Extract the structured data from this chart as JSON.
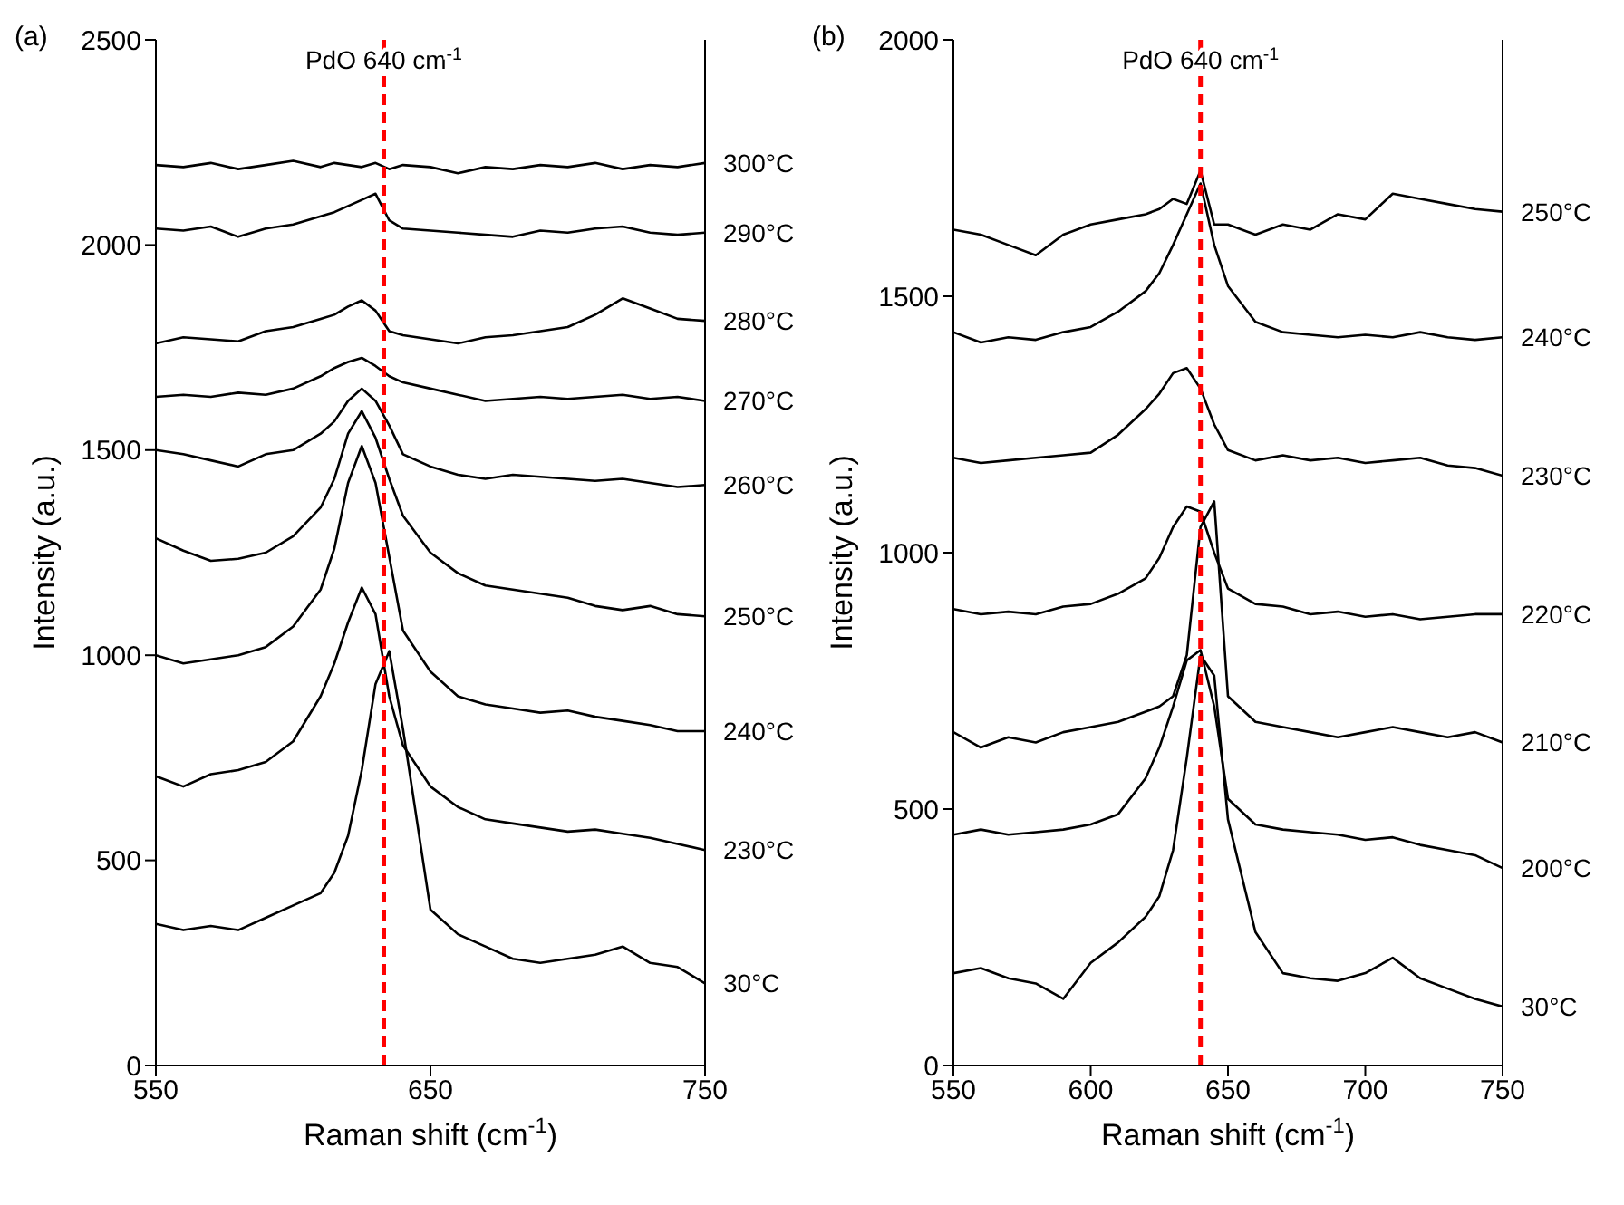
{
  "chart_data": [
    {
      "type": "line",
      "title": "(a)",
      "xlabel": "Raman shift (cm$^{-1}$)",
      "ylabel": "Intensity (a.u.)",
      "xlim": [
        550,
        750
      ],
      "xticks": [
        550,
        650,
        750
      ],
      "ylim": [
        0,
        2500
      ],
      "yticks": [
        0,
        500,
        1000,
        1500,
        2000,
        2500
      ],
      "grid": false,
      "legend": false,
      "marker": "none",
      "line_style": "solid",
      "x": [
        550,
        560,
        570,
        580,
        590,
        600,
        610,
        615,
        620,
        625,
        630,
        635,
        640,
        650,
        660,
        670,
        680,
        690,
        700,
        710,
        720,
        730,
        740,
        750
      ],
      "ref_lines": [
        {
          "axis": "x",
          "value": 633,
          "label": "PdO 640 cm$^{-1}$",
          "color": "#ff0000",
          "line_style": "dashed"
        }
      ],
      "series": [
        {
          "name": "300°C",
          "color": "#000000",
          "values": [
            2195,
            2190,
            2200,
            2185,
            2195,
            2205,
            2190,
            2200,
            2195,
            2190,
            2200,
            2185,
            2195,
            2190,
            2175,
            2190,
            2185,
            2195,
            2190,
            2200,
            2185,
            2195,
            2190,
            2200
          ]
        },
        {
          "name": "290°C",
          "color": "#000000",
          "values": [
            2040,
            2035,
            2045,
            2020,
            2040,
            2050,
            2070,
            2080,
            2095,
            2110,
            2125,
            2060,
            2040,
            2035,
            2030,
            2025,
            2020,
            2035,
            2030,
            2040,
            2045,
            2030,
            2025,
            2030
          ]
        },
        {
          "name": "280°C",
          "color": "#000000",
          "values": [
            1760,
            1775,
            1770,
            1765,
            1790,
            1800,
            1820,
            1830,
            1850,
            1865,
            1840,
            1790,
            1780,
            1770,
            1760,
            1775,
            1780,
            1790,
            1800,
            1830,
            1870,
            1845,
            1820,
            1815
          ]
        },
        {
          "name": "270°C",
          "color": "#000000",
          "values": [
            1630,
            1635,
            1630,
            1640,
            1635,
            1650,
            1680,
            1700,
            1715,
            1725,
            1705,
            1680,
            1665,
            1650,
            1635,
            1620,
            1625,
            1630,
            1625,
            1630,
            1635,
            1625,
            1630,
            1620
          ]
        },
        {
          "name": "260°C",
          "color": "#000000",
          "values": [
            1500,
            1490,
            1475,
            1460,
            1490,
            1500,
            1540,
            1570,
            1620,
            1650,
            1620,
            1560,
            1490,
            1460,
            1440,
            1430,
            1440,
            1435,
            1430,
            1425,
            1430,
            1420,
            1410,
            1415
          ]
        },
        {
          "name": "250°C",
          "color": "#000000",
          "values": [
            1285,
            1255,
            1230,
            1235,
            1250,
            1290,
            1360,
            1430,
            1540,
            1595,
            1530,
            1430,
            1340,
            1250,
            1200,
            1170,
            1160,
            1150,
            1140,
            1120,
            1110,
            1120,
            1100,
            1095
          ]
        },
        {
          "name": "240°C",
          "color": "#000000",
          "values": [
            1000,
            980,
            990,
            1000,
            1020,
            1070,
            1160,
            1260,
            1420,
            1510,
            1420,
            1240,
            1060,
            960,
            900,
            880,
            870,
            860,
            865,
            850,
            840,
            830,
            815,
            815
          ]
        },
        {
          "name": "230°C",
          "color": "#000000",
          "values": [
            705,
            680,
            710,
            720,
            740,
            790,
            900,
            980,
            1080,
            1165,
            1100,
            900,
            780,
            680,
            630,
            600,
            590,
            580,
            570,
            575,
            565,
            555,
            540,
            525
          ]
        },
        {
          "name": "30°C",
          "color": "#000000",
          "values": [
            345,
            330,
            340,
            330,
            360,
            390,
            420,
            470,
            560,
            720,
            930,
            1010,
            820,
            380,
            320,
            290,
            260,
            250,
            260,
            270,
            290,
            250,
            240,
            200
          ]
        }
      ]
    },
    {
      "type": "line",
      "title": "(b)",
      "xlabel": "Raman shift (cm$^{-1}$)",
      "ylabel": "Intensity (a.u.)",
      "xlim": [
        550,
        750
      ],
      "xticks": [
        550,
        600,
        650,
        700,
        750
      ],
      "ylim": [
        0,
        2000
      ],
      "yticks": [
        0,
        500,
        1000,
        1500,
        2000
      ],
      "grid": false,
      "legend": false,
      "marker": "none",
      "line_style": "solid",
      "x": [
        550,
        560,
        570,
        580,
        590,
        600,
        610,
        620,
        625,
        630,
        635,
        640,
        645,
        650,
        660,
        670,
        680,
        690,
        700,
        710,
        720,
        730,
        740,
        750
      ],
      "ref_lines": [
        {
          "axis": "x",
          "value": 640,
          "label": "PdO 640 cm$^{-1}$",
          "color": "#ff0000",
          "line_style": "dashed"
        }
      ],
      "series": [
        {
          "name": "250°C",
          "color": "#000000",
          "values": [
            1630,
            1620,
            1600,
            1580,
            1620,
            1640,
            1650,
            1660,
            1670,
            1690,
            1680,
            1745,
            1640,
            1640,
            1620,
            1640,
            1630,
            1660,
            1650,
            1700,
            1690,
            1680,
            1670,
            1665
          ]
        },
        {
          "name": "240°C",
          "color": "#000000",
          "values": [
            1430,
            1410,
            1420,
            1415,
            1430,
            1440,
            1470,
            1510,
            1545,
            1600,
            1660,
            1720,
            1600,
            1520,
            1450,
            1430,
            1425,
            1420,
            1425,
            1420,
            1430,
            1420,
            1415,
            1420
          ]
        },
        {
          "name": "230°C",
          "color": "#000000",
          "values": [
            1185,
            1175,
            1180,
            1185,
            1190,
            1195,
            1230,
            1280,
            1310,
            1350,
            1360,
            1320,
            1250,
            1200,
            1180,
            1190,
            1180,
            1185,
            1175,
            1180,
            1185,
            1170,
            1165,
            1150
          ]
        },
        {
          "name": "220°C",
          "color": "#000000",
          "values": [
            890,
            880,
            885,
            880,
            895,
            900,
            920,
            950,
            990,
            1050,
            1090,
            1080,
            1000,
            930,
            900,
            895,
            880,
            885,
            875,
            880,
            870,
            875,
            880,
            880
          ]
        },
        {
          "name": "210°C",
          "color": "#000000",
          "values": [
            650,
            620,
            640,
            630,
            650,
            660,
            670,
            690,
            700,
            720,
            800,
            1050,
            1100,
            720,
            670,
            660,
            650,
            640,
            650,
            660,
            650,
            640,
            650,
            630
          ]
        },
        {
          "name": "200°C",
          "color": "#000000",
          "values": [
            450,
            460,
            450,
            455,
            460,
            470,
            490,
            560,
            620,
            700,
            790,
            810,
            700,
            520,
            470,
            460,
            455,
            450,
            440,
            445,
            430,
            420,
            410,
            385
          ]
        },
        {
          "name": "30°C",
          "color": "#000000",
          "values": [
            180,
            190,
            170,
            160,
            130,
            200,
            240,
            290,
            330,
            420,
            600,
            800,
            760,
            480,
            260,
            180,
            170,
            165,
            180,
            210,
            170,
            150,
            130,
            115
          ]
        }
      ]
    }
  ]
}
